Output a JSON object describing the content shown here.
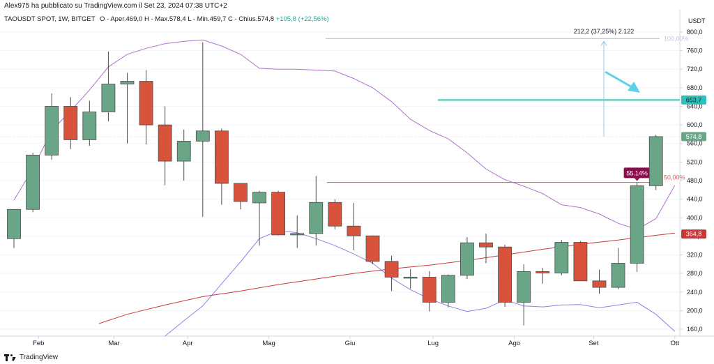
{
  "header": {
    "publisher": "Alex975 ha pubblicato su TradingView.com il Set 23, 2024 07:38 UTC+2",
    "symbol": "TAOUSDT SPOT, 1W, BITGET",
    "open": "O - Aper.469,0",
    "high": "H - Max.578,4",
    "low": "L - Min.459,7",
    "close": "C - Chius.574,8",
    "change": "+105,8 (+22,56%)"
  },
  "footer": {
    "brand": "TradingView"
  },
  "chart_data": {
    "type": "candlestick",
    "unit": "USDT",
    "ylim": [
      145,
      815
    ],
    "y_ticks": [
      "160,0",
      "200,0",
      "240,0",
      "280,0",
      "320,0",
      "360,0",
      "400,0",
      "440,0",
      "480,0",
      "520,0",
      "560,0",
      "600,0",
      "640,0",
      "680,0",
      "720,0",
      "760,0",
      "800,0"
    ],
    "y_tick_values": [
      160,
      200,
      240,
      280,
      320,
      360,
      400,
      440,
      480,
      520,
      560,
      600,
      640,
      680,
      720,
      760,
      800
    ],
    "x_labels": [
      "Feb",
      "Mar",
      "Apr",
      "Mag",
      "Giu",
      "Lug",
      "Ago",
      "Set",
      "Ott"
    ],
    "candles": [
      {
        "o": 355,
        "h": 418,
        "l": 335,
        "c": 418
      },
      {
        "o": 418,
        "h": 540,
        "l": 412,
        "c": 535
      },
      {
        "o": 535,
        "h": 668,
        "l": 525,
        "c": 640
      },
      {
        "o": 640,
        "h": 660,
        "l": 548,
        "c": 568
      },
      {
        "o": 568,
        "h": 652,
        "l": 555,
        "c": 628
      },
      {
        "o": 628,
        "h": 758,
        "l": 608,
        "c": 688
      },
      {
        "o": 688,
        "h": 712,
        "l": 560,
        "c": 694
      },
      {
        "o": 694,
        "h": 718,
        "l": 558,
        "c": 600
      },
      {
        "o": 600,
        "h": 640,
        "l": 470,
        "c": 522
      },
      {
        "o": 522,
        "h": 590,
        "l": 480,
        "c": 565
      },
      {
        "o": 565,
        "h": 778,
        "l": 402,
        "c": 587
      },
      {
        "o": 587,
        "h": 592,
        "l": 428,
        "c": 474
      },
      {
        "o": 474,
        "h": 474,
        "l": 418,
        "c": 435
      },
      {
        "o": 432,
        "h": 458,
        "l": 340,
        "c": 455
      },
      {
        "o": 455,
        "h": 458,
        "l": 362,
        "c": 363
      },
      {
        "o": 363,
        "h": 405,
        "l": 335,
        "c": 366
      },
      {
        "o": 366,
        "h": 490,
        "l": 340,
        "c": 433
      },
      {
        "o": 433,
        "h": 440,
        "l": 375,
        "c": 382
      },
      {
        "o": 382,
        "h": 432,
        "l": 330,
        "c": 361
      },
      {
        "o": 361,
        "h": 362,
        "l": 300,
        "c": 306
      },
      {
        "o": 306,
        "h": 318,
        "l": 242,
        "c": 272
      },
      {
        "o": 272,
        "h": 290,
        "l": 247,
        "c": 272
      },
      {
        "o": 272,
        "h": 285,
        "l": 198,
        "c": 218
      },
      {
        "o": 218,
        "h": 278,
        "l": 207,
        "c": 276
      },
      {
        "o": 276,
        "h": 358,
        "l": 268,
        "c": 346
      },
      {
        "o": 346,
        "h": 366,
        "l": 302,
        "c": 337
      },
      {
        "o": 337,
        "h": 342,
        "l": 208,
        "c": 218
      },
      {
        "o": 218,
        "h": 300,
        "l": 168,
        "c": 284
      },
      {
        "o": 284,
        "h": 292,
        "l": 258,
        "c": 281
      },
      {
        "o": 281,
        "h": 352,
        "l": 276,
        "c": 347
      },
      {
        "o": 347,
        "h": 350,
        "l": 265,
        "c": 264
      },
      {
        "o": 264,
        "h": 288,
        "l": 236,
        "c": 250
      },
      {
        "o": 250,
        "h": 335,
        "l": 246,
        "c": 302
      },
      {
        "o": 302,
        "h": 476,
        "l": 283,
        "c": 469
      },
      {
        "o": 469,
        "h": 578.4,
        "l": 459.7,
        "c": 574.8
      }
    ],
    "upper_band": [
      [
        0,
        438
      ],
      [
        1,
        505
      ],
      [
        2,
        588
      ],
      [
        3,
        630
      ],
      [
        4,
        675
      ],
      [
        5,
        725
      ],
      [
        6,
        752
      ],
      [
        7,
        765
      ],
      [
        8,
        775
      ],
      [
        9,
        780
      ],
      [
        10,
        783
      ],
      [
        11,
        770
      ],
      [
        12,
        752
      ],
      [
        13,
        722
      ],
      [
        14,
        720
      ],
      [
        15,
        720
      ],
      [
        16,
        718
      ],
      [
        17,
        716
      ],
      [
        18,
        700
      ],
      [
        19,
        680
      ],
      [
        20,
        650
      ],
      [
        21,
        612
      ],
      [
        22,
        588
      ],
      [
        23,
        570
      ],
      [
        24,
        540
      ],
      [
        25,
        505
      ],
      [
        26,
        482
      ],
      [
        27,
        468
      ],
      [
        28,
        452
      ],
      [
        29,
        428
      ],
      [
        30,
        422
      ],
      [
        31,
        408
      ],
      [
        32,
        388
      ],
      [
        33,
        375
      ],
      [
        34,
        398
      ],
      [
        35,
        470
      ]
    ],
    "lower_band": [
      [
        8,
        145
      ],
      [
        9,
        178
      ],
      [
        10,
        210
      ],
      [
        11,
        258
      ],
      [
        12,
        305
      ],
      [
        13,
        355
      ],
      [
        14,
        372
      ],
      [
        15,
        368
      ],
      [
        16,
        355
      ],
      [
        17,
        340
      ],
      [
        18,
        322
      ],
      [
        19,
        302
      ],
      [
        20,
        270
      ],
      [
        21,
        245
      ],
      [
        22,
        225
      ],
      [
        23,
        210
      ],
      [
        24,
        198
      ],
      [
        25,
        205
      ],
      [
        26,
        223
      ],
      [
        27,
        210
      ],
      [
        28,
        208
      ],
      [
        29,
        212
      ],
      [
        30,
        213
      ],
      [
        31,
        206
      ],
      [
        32,
        212
      ],
      [
        33,
        218
      ],
      [
        34,
        192
      ],
      [
        35,
        155
      ]
    ],
    "moving_average": [
      [
        4.5,
        172
      ],
      [
        6,
        192
      ],
      [
        8,
        212
      ],
      [
        10,
        230
      ],
      [
        12,
        242
      ],
      [
        14,
        256
      ],
      [
        16,
        268
      ],
      [
        18,
        280
      ],
      [
        20,
        290
      ],
      [
        22,
        298
      ],
      [
        24,
        308
      ],
      [
        26,
        320
      ],
      [
        28,
        332
      ],
      [
        30,
        343
      ],
      [
        32,
        352
      ],
      [
        34,
        362
      ],
      [
        35,
        367
      ]
    ],
    "annotations": {
      "resistance_level": 653.7,
      "resistance_label": "653,7",
      "price_label": "574,8",
      "ma_label": "364,8",
      "fib_50_level": 476,
      "fib_50_text": "50,00%",
      "fib_100_level": 786,
      "fib_100_text": "100,00%",
      "pct_badge": "55.14%",
      "measure_text": "212,2 (37,25%) 2.122",
      "measure_from": 575,
      "measure_to": 780
    },
    "colors": {
      "up": "#6aa587",
      "down": "#d9533c",
      "upper_band": "#b070d0",
      "lower_band": "#9080e8",
      "ma": "#c8373b",
      "cyan": "#2ec1b9",
      "arrow": "#5fd0e8",
      "badge": "#880e4f",
      "fib_line": "#e05a5a"
    }
  }
}
